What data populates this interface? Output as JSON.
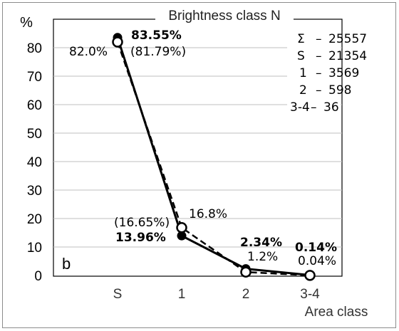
{
  "chart_data": {
    "type": "line",
    "title": "Brightness class N",
    "panel_label": "b",
    "xlabel": "Area class",
    "ylabel": "%",
    "categories": [
      "S",
      "1",
      "2",
      "3-4"
    ],
    "ylim": [
      0,
      90
    ],
    "y_ticks": [
      "0",
      "10",
      "20",
      "30",
      "40",
      "50",
      "60",
      "70",
      "80"
    ],
    "grid": "horizontal",
    "series": [
      {
        "marker": "filled-circle",
        "line": "solid",
        "values": [
          83.55,
          13.96,
          2.34,
          0.14
        ],
        "labels": [
          "83.55%",
          "13.96%",
          "2.34%",
          "0.14%"
        ]
      },
      {
        "marker": "open-circle",
        "line": "dashed",
        "values": [
          82.0,
          16.8,
          1.2,
          0.04
        ],
        "labels": [
          "82.0%",
          "16.8%",
          "1.2%",
          "0.04%"
        ]
      }
    ],
    "extra_labels": [
      "(81.79%)",
      "(16.65%)"
    ],
    "legend": {
      "placement": "top-right",
      "rows": [
        {
          "key": "Σ",
          "value": "25557"
        },
        {
          "key": "S",
          "value": "21354"
        },
        {
          "key": "1",
          "value": "3569"
        },
        {
          "key": "2",
          "value": "598"
        },
        {
          "key": "3-4",
          "value": "36"
        }
      ]
    },
    "colors": {
      "line": "#000000",
      "grid": "#bfbfbf",
      "frame": "#8c8c8c"
    }
  }
}
